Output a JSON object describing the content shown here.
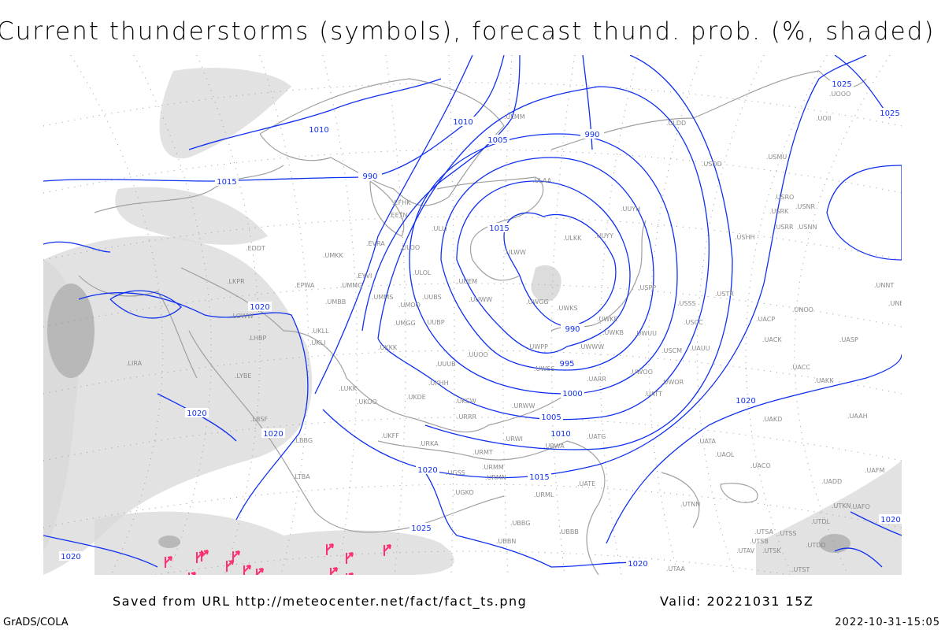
{
  "title": "Current thunderstorms (symbols), forecast thund. prob. (%, shaded)",
  "footer": {
    "saved_from": "Saved from URL http://meteocenter.net/fact/fact_ts.png",
    "valid": "Valid: 20221031 15Z",
    "software": "GrADS/COLA",
    "timestamp": "2022-10-31-15:05"
  },
  "colors": {
    "isobar": "#1030f0",
    "coast": "#a0a0a0",
    "shading": "#d8d8d8",
    "thunderstorm_symbol": "#ff3070"
  },
  "isobar_labels": [
    "1010",
    "1010",
    "1005",
    "990",
    "1015",
    "1015",
    "990",
    "990",
    "995",
    "1000",
    "1005",
    "1010",
    "1015",
    "1020",
    "1020",
    "1020",
    "1020",
    "1025",
    "1020",
    "1020",
    "1020",
    "1025",
    "1025",
    "1020"
  ],
  "stations": [
    ".UMKK",
    ".EVRA",
    ".ULOO",
    ".ULOL",
    ".UUEM",
    ".UUWW",
    ".UWGG",
    ".UWKS",
    ".ULWW",
    ".ULKK",
    ".UUYY",
    ".UUYH",
    ".USPP",
    ".UWKE",
    ".UWKB",
    ".UWUU",
    ".UWWW",
    ".UWPP",
    ".UWSS",
    ".UUOO",
    ".UUUB",
    ".UKHH",
    ".UKKK",
    ".UUBP",
    ".UMGG",
    ".UMMS",
    ".UMOO",
    ".UUBS",
    ".EYVI",
    ".UMMG",
    ".UMBB",
    ".UKLL",
    ".UKLI",
    ".EPWA",
    ".LKPR",
    ".EDDT",
    ".LOWW",
    ".LHBP",
    ".LIRA",
    ".LYBE",
    ".LUKK",
    ".UKOO",
    ".UKDE",
    ".UKFF",
    ".URKA",
    ".URRR",
    ".UKCW",
    ".URWW",
    ".UARR",
    ".UWOO",
    ".UWOR",
    ".UATT",
    ".URWI",
    ".UATG",
    ".URMT",
    ".URWA",
    ".URMM",
    ".URMN",
    ".LBSF",
    ".LBBG",
    ".LTBA",
    ".UGKO",
    ".UGSS",
    ".UBBB",
    ".UATE",
    ".URML",
    ".UTAA",
    ".UATA",
    ".UAOL",
    ".UACC",
    ".UAKK",
    ".UAAH",
    ".UAKD",
    ".UACP",
    ".UACK",
    ".UASP",
    ".UNOO",
    ".USTR",
    ".USSS",
    ".USCC",
    ".USCM",
    ".UAUU",
    ".USRR",
    ".USRK",
    ".USRO",
    ".USNR",
    ".USNN",
    ".USHH",
    ".UNNT",
    ".UNBB",
    ".USMU",
    ".USDD",
    ".ULDD",
    ".UOOO",
    ".UOII",
    ".ULAA",
    ".ULMM",
    ".ULLI",
    ".EFHK",
    ".EETN",
    ".UTNN",
    ".UTSA",
    ".UTSS",
    ".UTSB",
    ".UTAV",
    ".UTSK",
    ".UTDD",
    ".UTST",
    ".UTDL",
    ".UTKN",
    ".UAFO",
    ".UAFM",
    ".UADD",
    ".UACO",
    ".UBBN",
    ".UBBG"
  ],
  "thunderstorm_count": 13
}
